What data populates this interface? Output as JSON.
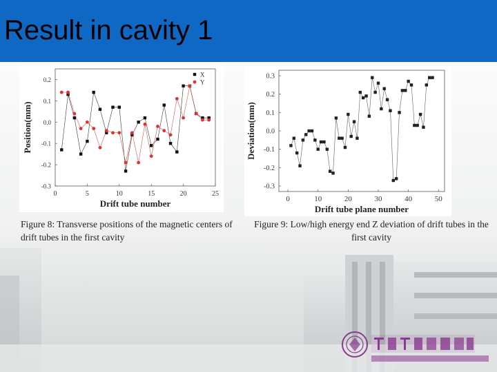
{
  "slide": {
    "title": "Result in cavity 1",
    "caption1": "Figure 8: Transverse positions of the magnetic centers of drift tubes in the first cavity",
    "caption2": "Figure 9: Low/high energy end Z deviation of drift tubes in the first cavity",
    "header_color": "#0f68c4"
  },
  "chart_data": [
    {
      "type": "line",
      "xlabel": "Drift tube number",
      "ylabel": "Position(mm)",
      "xlim": [
        0,
        25
      ],
      "ylim": [
        -0.3,
        0.25
      ],
      "xticks": [
        0,
        5,
        10,
        15,
        20,
        25
      ],
      "yticks": [
        0.2,
        0.1,
        0.0,
        -0.1,
        -0.2,
        -0.3
      ],
      "ytick_labels": [
        "0.2",
        "0.1",
        "0.0",
        "-0.1",
        "-0.2",
        "-0.3"
      ],
      "legend_position": "top-right",
      "series": [
        {
          "name": "X",
          "color": "#111111",
          "x": [
            1,
            2,
            3,
            4,
            5,
            6,
            7,
            8,
            9,
            10,
            11,
            12,
            13,
            14,
            15,
            16,
            17,
            18,
            19,
            20,
            21,
            22,
            23,
            24
          ],
          "y": [
            -0.13,
            0.13,
            0.02,
            -0.15,
            -0.09,
            0.14,
            0.06,
            -0.05,
            0.07,
            0.07,
            -0.23,
            -0.06,
            0.0,
            0.02,
            -0.11,
            -0.08,
            0.08,
            -0.1,
            -0.14,
            0.17,
            0.17,
            0.04,
            0.02,
            0.02
          ]
        },
        {
          "name": "Y",
          "color": "#e0312c",
          "x": [
            1,
            2,
            3,
            4,
            5,
            6,
            7,
            8,
            9,
            10,
            11,
            12,
            13,
            14,
            15,
            16,
            17,
            18,
            19,
            20,
            21,
            22,
            23,
            24
          ],
          "y": [
            0.14,
            0.14,
            0.04,
            -0.03,
            0.0,
            -0.03,
            -0.12,
            -0.04,
            -0.05,
            -0.05,
            -0.19,
            -0.05,
            -0.19,
            -0.01,
            -0.16,
            -0.02,
            -0.04,
            -0.06,
            0.11,
            0.02,
            0.17,
            0.04,
            0.01,
            0.01
          ]
        }
      ]
    },
    {
      "type": "line",
      "xlabel": "Drift tube plane number",
      "ylabel": "Deviation(mm)",
      "xlim": [
        -3,
        52
      ],
      "ylim": [
        -0.33,
        0.33
      ],
      "xticks": [
        0,
        10,
        20,
        30,
        40,
        50
      ],
      "yticks": [
        0.3,
        0.2,
        0.1,
        0.0,
        -0.1,
        -0.2,
        -0.3
      ],
      "ytick_labels": [
        "0.3",
        "0.2",
        "0.1",
        "0.0",
        "-0.1",
        "-0.2",
        "-0.3"
      ],
      "series": [
        {
          "color": "#222222",
          "x": [
            1,
            2,
            3,
            4,
            5,
            6,
            7,
            8,
            9,
            10,
            11,
            12,
            13,
            14,
            15,
            16,
            17,
            18,
            19,
            20,
            21,
            22,
            23,
            24,
            25,
            26,
            27,
            28,
            29,
            30,
            31,
            32,
            33,
            34,
            35,
            36,
            37,
            38,
            39,
            40,
            41,
            42,
            43,
            44,
            45,
            46,
            47,
            48
          ],
          "y": [
            -0.08,
            -0.04,
            -0.12,
            -0.19,
            -0.05,
            -0.02,
            0.0,
            0.0,
            -0.05,
            -0.1,
            -0.06,
            -0.06,
            -0.1,
            -0.22,
            -0.23,
            0.07,
            -0.04,
            -0.04,
            -0.09,
            0.09,
            -0.03,
            0.05,
            -0.04,
            0.21,
            0.18,
            0.19,
            0.08,
            0.29,
            0.21,
            0.26,
            0.12,
            0.23,
            0.17,
            0.11,
            -0.27,
            -0.26,
            0.1,
            0.22,
            0.22,
            0.27,
            0.25,
            0.03,
            0.03,
            0.09,
            0.02,
            0.25,
            0.29,
            0.29
          ]
        }
      ]
    }
  ]
}
